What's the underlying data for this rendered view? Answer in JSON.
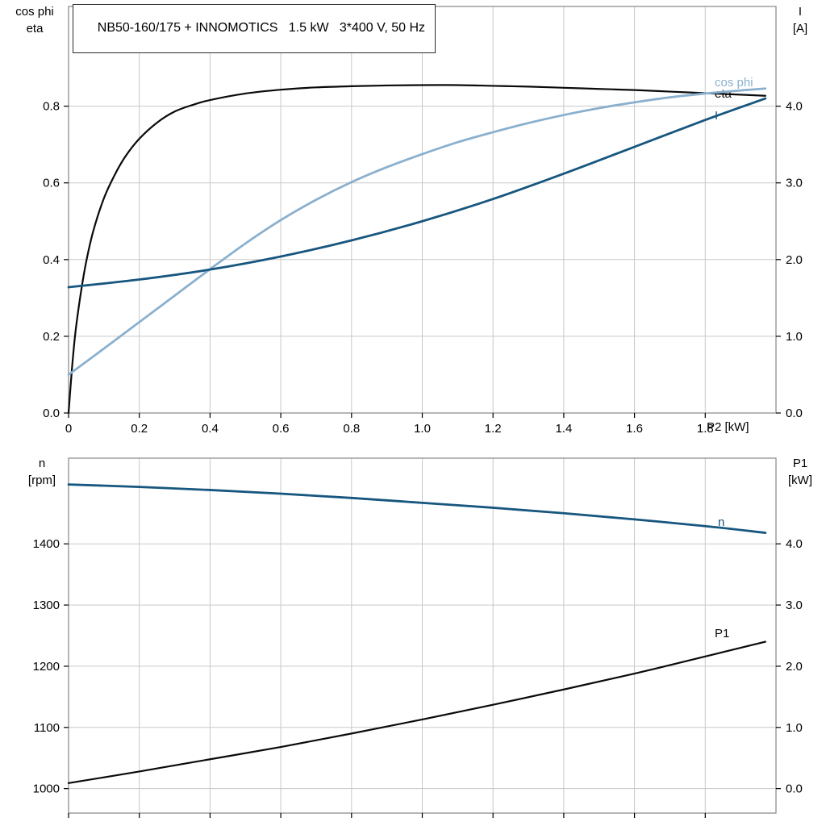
{
  "title_box": {
    "text": "NB50-160/175 + INNOMOTICS   1.5 kW   3*400 V, 50 Hz"
  },
  "colors": {
    "black": "#0a0a0a",
    "dark_blue": "#17567f",
    "light_blue": "#8ab0ce",
    "grid": "#c9c9c9",
    "border": "#8f8f8f",
    "background": "#ffffff",
    "text": "#000000"
  },
  "chart_data": [
    {
      "type": "line",
      "name": "electrical-curves",
      "grid": true,
      "x_axis": {
        "label": "P2 [kW]",
        "min": 0,
        "max": 2.0,
        "tick_values": [
          0,
          0.2,
          0.4,
          0.6,
          0.8,
          1.0,
          1.2,
          1.4,
          1.6,
          1.8
        ],
        "tick_labels": [
          "0",
          "0.2",
          "0.4",
          "0.6",
          "0.8",
          "1.0",
          "1.2",
          "1.4",
          "1.6",
          "1.8"
        ]
      },
      "left_axis": {
        "header_lines": [
          "cos phi",
          "eta"
        ],
        "min": 0,
        "max": 1.06,
        "tick_values": [
          0,
          0.2,
          0.4,
          0.6,
          0.8
        ],
        "tick_labels": [
          "0.0",
          "0.2",
          "0.4",
          "0.6",
          "0.8"
        ]
      },
      "right_axis": {
        "header_lines": [
          "I",
          "[A]"
        ],
        "min": 0,
        "max": 5.3,
        "tick_values": [
          0,
          1,
          2,
          3,
          4
        ],
        "tick_labels": [
          "0.0",
          "1.0",
          "2.0",
          "3.0",
          "4.0"
        ]
      },
      "series": [
        {
          "name": "eta",
          "label": "eta",
          "axis": "left",
          "color_key": "black",
          "points": [
            [
              0,
              0
            ],
            [
              0.01,
              0.12
            ],
            [
              0.02,
              0.215
            ],
            [
              0.035,
              0.315
            ],
            [
              0.05,
              0.395
            ],
            [
              0.07,
              0.475
            ],
            [
              0.1,
              0.56
            ],
            [
              0.13,
              0.62
            ],
            [
              0.16,
              0.668
            ],
            [
              0.2,
              0.715
            ],
            [
              0.25,
              0.757
            ],
            [
              0.3,
              0.786
            ],
            [
              0.35,
              0.803
            ],
            [
              0.4,
              0.816
            ],
            [
              0.5,
              0.833
            ],
            [
              0.6,
              0.843
            ],
            [
              0.7,
              0.849
            ],
            [
              0.8,
              0.852
            ],
            [
              0.9,
              0.854
            ],
            [
              1.0,
              0.855
            ],
            [
              1.1,
              0.855
            ],
            [
              1.2,
              0.853
            ],
            [
              1.3,
              0.851
            ],
            [
              1.4,
              0.848
            ],
            [
              1.5,
              0.845
            ],
            [
              1.6,
              0.842
            ],
            [
              1.7,
              0.838
            ],
            [
              1.8,
              0.834
            ],
            [
              1.9,
              0.83
            ],
            [
              1.97,
              0.827
            ]
          ]
        },
        {
          "name": "cos_phi",
          "label": "cos phi",
          "axis": "left",
          "color_key": "light_blue",
          "points": [
            [
              0,
              0.1
            ],
            [
              0.1,
              0.168
            ],
            [
              0.2,
              0.237
            ],
            [
              0.3,
              0.306
            ],
            [
              0.4,
              0.375
            ],
            [
              0.5,
              0.442
            ],
            [
              0.6,
              0.503
            ],
            [
              0.7,
              0.556
            ],
            [
              0.8,
              0.602
            ],
            [
              0.9,
              0.641
            ],
            [
              1.0,
              0.675
            ],
            [
              1.1,
              0.706
            ],
            [
              1.2,
              0.732
            ],
            [
              1.3,
              0.756
            ],
            [
              1.4,
              0.777
            ],
            [
              1.5,
              0.795
            ],
            [
              1.6,
              0.81
            ],
            [
              1.7,
              0.823
            ],
            [
              1.8,
              0.833
            ],
            [
              1.9,
              0.841
            ],
            [
              1.97,
              0.846
            ]
          ]
        },
        {
          "name": "I",
          "label": "I",
          "axis": "right",
          "color_key": "dark_blue",
          "points": [
            [
              0,
              1.64
            ],
            [
              0.2,
              1.74
            ],
            [
              0.4,
              1.87
            ],
            [
              0.6,
              2.04
            ],
            [
              0.8,
              2.25
            ],
            [
              1.0,
              2.5
            ],
            [
              1.2,
              2.79
            ],
            [
              1.4,
              3.12
            ],
            [
              1.6,
              3.47
            ],
            [
              1.8,
              3.82
            ],
            [
              1.97,
              4.1
            ]
          ]
        }
      ]
    },
    {
      "type": "line",
      "name": "speed-power-curves",
      "grid": true,
      "x_axis": {
        "label": "",
        "min": 0,
        "max": 2.0,
        "tick_values": [
          0,
          0.2,
          0.4,
          0.6,
          0.8,
          1.0,
          1.2,
          1.4,
          1.6,
          1.8
        ],
        "tick_labels": []
      },
      "left_axis": {
        "header_lines": [
          "n",
          "[rpm]"
        ],
        "min": 960,
        "max": 1540,
        "tick_values": [
          1000,
          1100,
          1200,
          1300,
          1400
        ],
        "tick_labels": [
          "1000",
          "1100",
          "1200",
          "1300",
          "1400"
        ]
      },
      "right_axis": {
        "header_lines": [
          "P1",
          "[kW]"
        ],
        "min": -0.4,
        "max": 5.4,
        "tick_values": [
          0,
          1,
          2,
          3,
          4
        ],
        "tick_labels": [
          "0.0",
          "1.0",
          "2.0",
          "3.0",
          "4.0"
        ]
      },
      "series": [
        {
          "name": "n",
          "label": "n",
          "axis": "left",
          "color_key": "dark_blue",
          "points": [
            [
              0,
              1497
            ],
            [
              0.2,
              1493
            ],
            [
              0.4,
              1488
            ],
            [
              0.6,
              1482
            ],
            [
              0.8,
              1475
            ],
            [
              1.0,
              1467
            ],
            [
              1.2,
              1459
            ],
            [
              1.4,
              1450
            ],
            [
              1.6,
              1440
            ],
            [
              1.8,
              1429
            ],
            [
              1.97,
              1418
            ]
          ]
        },
        {
          "name": "P1",
          "label": "P1",
          "axis": "right",
          "color_key": "black",
          "points": [
            [
              0,
              0.09
            ],
            [
              0.2,
              0.28
            ],
            [
              0.4,
              0.48
            ],
            [
              0.6,
              0.68
            ],
            [
              0.8,
              0.9
            ],
            [
              1.0,
              1.13
            ],
            [
              1.2,
              1.37
            ],
            [
              1.4,
              1.62
            ],
            [
              1.6,
              1.88
            ],
            [
              1.8,
              2.16
            ],
            [
              1.97,
              2.4
            ]
          ]
        }
      ]
    }
  ]
}
